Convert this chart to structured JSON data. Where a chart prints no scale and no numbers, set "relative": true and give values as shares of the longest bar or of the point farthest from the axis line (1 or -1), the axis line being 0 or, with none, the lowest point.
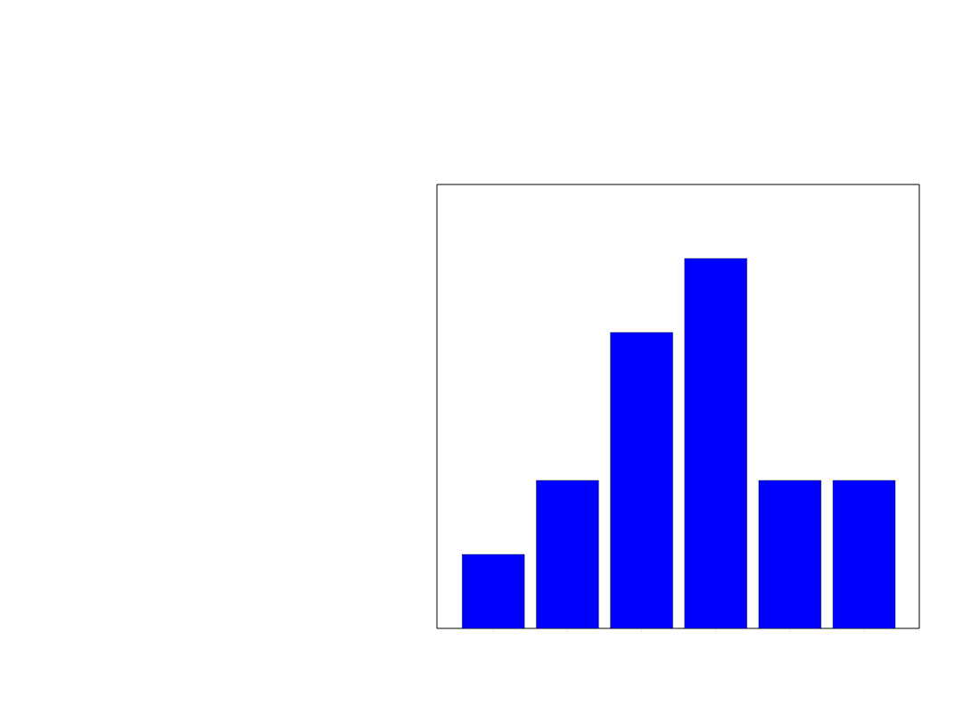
{
  "chart_data": {
    "type": "bar",
    "relative": true,
    "categories": [
      null,
      null,
      null,
      null,
      null,
      null
    ],
    "values": [
      0.2,
      0.4,
      0.8,
      1,
      0.4,
      0.4
    ],
    "color": "#0000ff"
  }
}
